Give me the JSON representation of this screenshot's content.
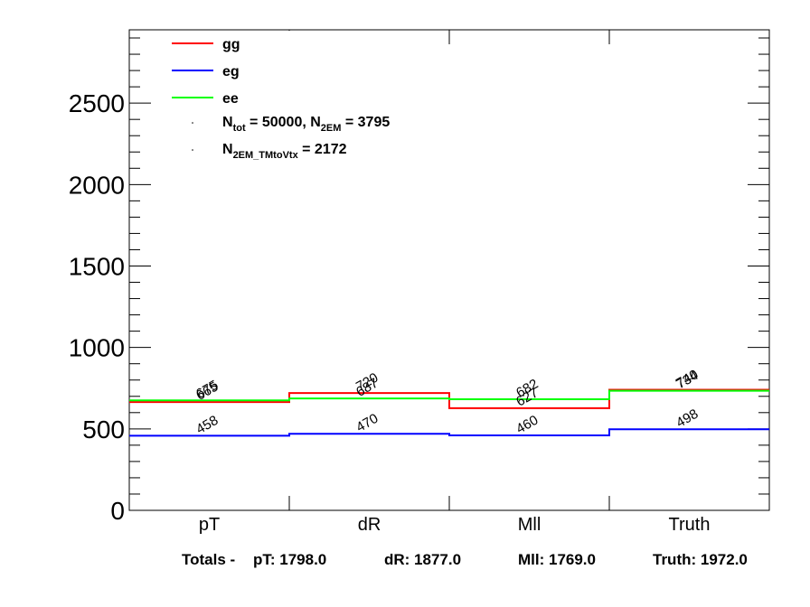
{
  "chart_data": {
    "type": "histogram-step",
    "categories": [
      "pT",
      "dR",
      "Mll",
      "Truth"
    ],
    "ylim": [
      0,
      2950
    ],
    "yticks": [
      0,
      500,
      1000,
      1500,
      2000,
      2500
    ],
    "series": [
      {
        "name": "gg",
        "color": "#ff0000",
        "values": [
          665,
          720,
          627,
          740
        ]
      },
      {
        "name": "eg",
        "color": "#0000ff",
        "values": [
          458,
          470,
          460,
          498
        ]
      },
      {
        "name": "ee",
        "color": "#00ff00",
        "values": [
          675,
          687,
          682,
          734
        ]
      }
    ],
    "legend": {
      "placement": "top-left",
      "entries": [
        "gg",
        "eg",
        "ee"
      ],
      "text_lines": [
        {
          "main1": "N",
          "sub1": "tot",
          "main2": " = 50000, N",
          "sub2": "2EM",
          "main3": " = 3795"
        },
        {
          "main1": "N",
          "sub1": "2EM_TMtoVtx",
          "main2": "  = 2172"
        }
      ]
    }
  },
  "totals": {
    "prefix": "Totals -",
    "items": [
      "pT: 1798.0",
      "dR: 1877.0",
      "Mll: 1769.0",
      "Truth: 1972.0"
    ]
  }
}
